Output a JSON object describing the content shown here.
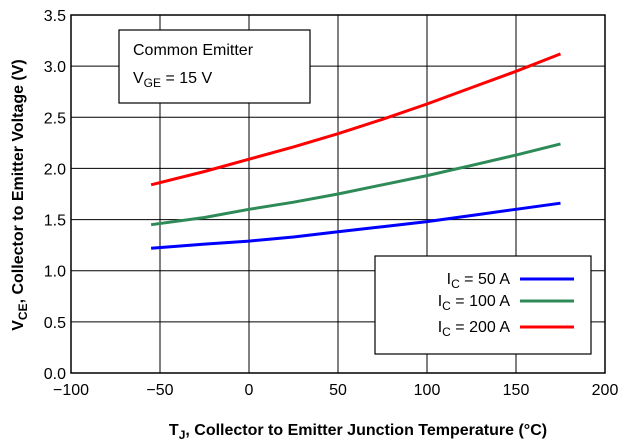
{
  "chart_data": {
    "type": "line",
    "title": "",
    "annotation": {
      "line1": "Common Emitter",
      "line2_main": "V",
      "line2_sub": "GE",
      "line2_rest": " = 15 V"
    },
    "xlabel": {
      "main": "T",
      "sub": "J",
      "rest": ", Collector to Emitter Junction Temperature (°C)"
    },
    "ylabel": {
      "main": "V",
      "sub": "CE",
      "rest": ", Collector to Emitter Voltage (V)"
    },
    "xlim": [
      -100,
      200
    ],
    "ylim": [
      0,
      3.5
    ],
    "xticks": [
      "−100",
      "−50",
      "0",
      "50",
      "100",
      "150",
      "200"
    ],
    "xtick_values": [
      -100,
      -50,
      0,
      50,
      100,
      150,
      200
    ],
    "yticks": [
      "0.0",
      "0.5",
      "1.0",
      "1.5",
      "2.0",
      "2.5",
      "3.0",
      "3.5"
    ],
    "ytick_values": [
      0,
      0.5,
      1.0,
      1.5,
      2.0,
      2.5,
      3.0,
      3.5
    ],
    "grid": true,
    "legend_position": "bottom-right",
    "series": [
      {
        "name_main": "I",
        "name_sub": "C",
        "name_rest": " = 50 A",
        "color": "#0000ff",
        "x": [
          -55,
          -25,
          0,
          25,
          50,
          75,
          100,
          125,
          150,
          175
        ],
        "y": [
          1.22,
          1.26,
          1.29,
          1.33,
          1.38,
          1.43,
          1.48,
          1.54,
          1.6,
          1.66
        ]
      },
      {
        "name_main": "I",
        "name_sub": "C",
        "name_rest": " = 100 A",
        "color": "#2e8b57",
        "x": [
          -55,
          -25,
          0,
          25,
          50,
          75,
          100,
          125,
          150,
          175
        ],
        "y": [
          1.45,
          1.52,
          1.6,
          1.67,
          1.75,
          1.84,
          1.93,
          2.03,
          2.13,
          2.24
        ]
      },
      {
        "name_main": "I",
        "name_sub": "C",
        "name_rest": " = 200 A",
        "color": "#ff0000",
        "x": [
          -55,
          -25,
          0,
          25,
          50,
          75,
          100,
          125,
          150,
          175
        ],
        "y": [
          1.84,
          1.97,
          2.09,
          2.21,
          2.34,
          2.48,
          2.63,
          2.79,
          2.95,
          3.12
        ]
      }
    ]
  }
}
